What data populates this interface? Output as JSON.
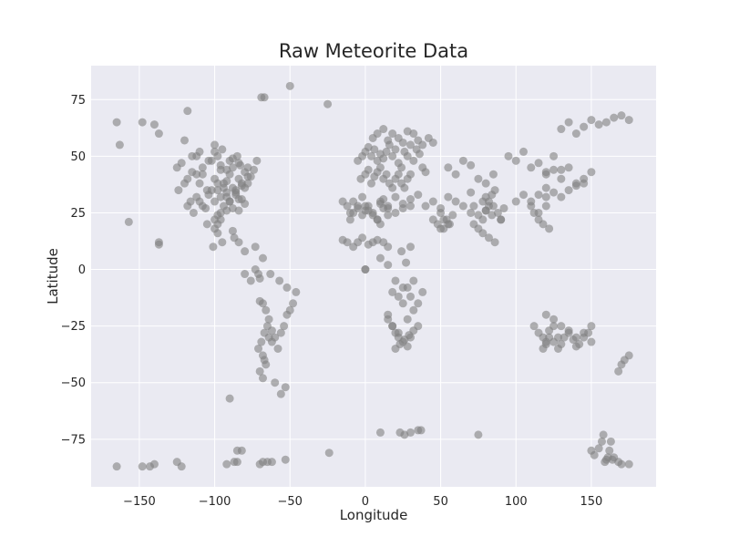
{
  "chart_data": {
    "type": "scatter",
    "title": "Raw Meteorite Data",
    "xlabel": "Longitude",
    "ylabel": "Latitude",
    "xlim": [
      -182,
      193
    ],
    "ylim": [
      -96,
      90
    ],
    "xticks": [
      -150,
      -100,
      -50,
      0,
      50,
      100,
      150
    ],
    "yticks": [
      75,
      50,
      25,
      0,
      -25,
      -50,
      -75
    ],
    "xtick_labels": [
      "−150",
      "−100",
      "−50",
      "0",
      "50",
      "100",
      "150"
    ],
    "ytick_labels": [
      "75",
      "50",
      "25",
      "0",
      "−25",
      "−50",
      "−75"
    ],
    "grid": true,
    "style": {
      "background": "#eaeaf2",
      "grid_color": "#ffffff",
      "point_color": "#808080",
      "point_opacity": 0.6
    },
    "series": [
      {
        "x": [
          -165,
          -163,
          -148,
          -140,
          -137,
          -137,
          -120,
          -118,
          -157,
          -137,
          -125,
          -122,
          -118,
          -115,
          -112,
          -110,
          -108,
          -105,
          -102,
          -100,
          -98,
          -96,
          -94,
          -92,
          -90,
          -88,
          -86,
          -84,
          -82,
          -80,
          -78,
          -76,
          -74,
          -124,
          -120,
          -116,
          -112,
          -108,
          -104,
          -100,
          -98,
          -96,
          -94,
          -92,
          -90,
          -88,
          -86,
          -84,
          -82,
          -80,
          -78,
          -118,
          -114,
          -110,
          -106,
          -102,
          -100,
          -98,
          -96,
          -94,
          -92,
          -90,
          -88,
          -86,
          -84,
          -82,
          -80,
          -112,
          -108,
          -104,
          -100,
          -98,
          -96,
          -92,
          -88,
          -84,
          -105,
          -100,
          -98,
          -96,
          -92,
          -88,
          -101,
          -98,
          -95,
          -87,
          -84,
          -80,
          -73,
          -68,
          -115,
          -110,
          -100,
          -95,
          -90,
          -85,
          -83,
          -78,
          -72,
          -69,
          -67,
          -50,
          -25,
          -80,
          -76,
          -73,
          -71,
          -70,
          -70,
          -68,
          -66,
          -64,
          -65,
          -62,
          -60,
          -67,
          -69,
          -71,
          -68,
          -64,
          -62,
          -58,
          -56,
          -54,
          -52,
          -50,
          -48,
          -46,
          -52,
          -57,
          -63,
          -67,
          -70,
          -68,
          -66,
          -60,
          -56,
          -53,
          -90,
          -85,
          -5,
          -2,
          0,
          2,
          4,
          6,
          8,
          10,
          12,
          14,
          16,
          18,
          20,
          22,
          24,
          26,
          28,
          30,
          32,
          34,
          36,
          38,
          40,
          -3,
          0,
          2,
          4,
          6,
          8,
          10,
          12,
          14,
          16,
          18,
          20,
          22,
          24,
          26,
          28,
          30,
          5,
          8,
          12,
          15,
          18,
          22,
          25,
          28,
          32,
          35,
          38,
          42,
          45,
          10,
          15,
          20,
          25,
          30,
          35,
          40,
          45,
          50,
          55,
          60,
          65,
          70,
          -10,
          -8,
          -5,
          -2,
          0,
          2,
          5,
          8,
          10,
          12,
          15,
          20,
          25,
          30,
          -15,
          -12,
          -10,
          -8,
          -5,
          -2,
          0,
          2,
          5,
          8,
          10,
          12,
          15,
          -15,
          -12,
          -8,
          -5,
          -2,
          2,
          5,
          8,
          12,
          15,
          0,
          0,
          10,
          15,
          20,
          25,
          30,
          35,
          38,
          32,
          28,
          22,
          18,
          15,
          15,
          18,
          20,
          22,
          25,
          28,
          30,
          32,
          35,
          20,
          23,
          26,
          29,
          18,
          22,
          25,
          28,
          32,
          24,
          27,
          30,
          45,
          48,
          50,
          52,
          55,
          58,
          50,
          52,
          54,
          56,
          55,
          60,
          65,
          70,
          75,
          80,
          85,
          70,
          72,
          75,
          78,
          80,
          82,
          85,
          88,
          90,
          92,
          72,
          75,
          78,
          82,
          86,
          90,
          84,
          80,
          78,
          80,
          82,
          86,
          84,
          95,
          100,
          105,
          110,
          115,
          120,
          125,
          130,
          100,
          105,
          110,
          115,
          120,
          112,
          115,
          118,
          120,
          122,
          120,
          125,
          130,
          135,
          140,
          145,
          150,
          110,
          115,
          120,
          125,
          130,
          135,
          140,
          145,
          130,
          135,
          140,
          145,
          150,
          155,
          160,
          165,
          170,
          175,
          112,
          115,
          118,
          120,
          122,
          125,
          128,
          118,
          120,
          122,
          125,
          128,
          130,
          132,
          135,
          138,
          140,
          142,
          145,
          148,
          150,
          120,
          125,
          130,
          135,
          140,
          145,
          150,
          168,
          170,
          172,
          175,
          -165,
          -148,
          -143,
          -140,
          -125,
          -122,
          -92,
          -87,
          -85,
          -82,
          -70,
          -68,
          -65,
          -62,
          -53,
          -24,
          10,
          23,
          26,
          30,
          35,
          37,
          75,
          150,
          152,
          155,
          157,
          158,
          159,
          160,
          161,
          162,
          163,
          164,
          165,
          168,
          170,
          175
        ],
        "y": [
          65,
          55,
          65,
          64,
          60,
          12,
          57,
          70,
          21,
          11,
          45,
          47,
          40,
          43,
          50,
          38,
          42,
          35,
          48,
          40,
          38,
          44,
          36,
          39,
          42,
          45,
          35,
          40,
          37,
          43,
          38,
          41,
          44,
          35,
          38,
          30,
          32,
          28,
          33,
          30,
          35,
          32,
          38,
          34,
          30,
          36,
          33,
          31,
          38,
          36,
          41,
          28,
          25,
          30,
          27,
          35,
          22,
          20,
          25,
          28,
          32,
          30,
          27,
          34,
          26,
          31,
          29,
          42,
          45,
          48,
          52,
          50,
          46,
          44,
          49,
          47,
          20,
          18,
          24,
          22,
          26,
          17,
          10,
          16,
          12,
          14,
          12,
          8,
          10,
          5,
          50,
          52,
          55,
          53,
          48,
          50,
          46,
          45,
          48,
          76,
          76,
          81,
          73,
          -2,
          -5,
          0,
          -2,
          -4,
          -14,
          -15,
          -18,
          -22,
          -25,
          -27,
          -30,
          -28,
          -32,
          -35,
          -38,
          -30,
          -32,
          -35,
          -28,
          -25,
          -20,
          -18,
          -15,
          -10,
          -8,
          -5,
          -2,
          -40,
          -45,
          -48,
          -42,
          -50,
          -55,
          -52,
          -57,
          -80,
          48,
          50,
          52,
          54,
          50,
          53,
          48,
          51,
          49,
          52,
          55,
          50,
          53,
          47,
          45,
          52,
          50,
          55,
          48,
          53,
          51,
          45,
          43,
          40,
          42,
          44,
          38,
          41,
          43,
          45,
          40,
          42,
          38,
          36,
          40,
          42,
          38,
          36,
          40,
          42,
          58,
          60,
          62,
          57,
          60,
          58,
          56,
          61,
          60,
          57,
          55,
          58,
          56,
          30,
          28,
          32,
          29,
          31,
          33,
          28,
          30,
          27,
          32,
          30,
          28,
          34,
          22,
          25,
          28,
          24,
          26,
          28,
          25,
          22,
          20,
          27,
          24,
          25,
          27,
          28,
          30,
          28,
          25,
          30,
          27,
          32,
          28,
          26,
          24,
          22,
          29,
          31,
          27,
          13,
          12,
          10,
          12,
          14,
          11,
          12,
          13,
          12,
          10,
          0,
          0,
          5,
          2,
          -5,
          -8,
          -12,
          -15,
          -10,
          -18,
          -22,
          -28,
          -25,
          -20,
          -22,
          -25,
          -28,
          -30,
          -32,
          -34,
          -30,
          -27,
          -25,
          -35,
          -33,
          -31,
          -29,
          -10,
          -12,
          -15,
          -8,
          -5,
          8,
          3,
          10,
          22,
          20,
          18,
          22,
          20,
          24,
          25,
          18,
          22,
          20,
          45,
          42,
          48,
          46,
          40,
          38,
          42,
          25,
          28,
          24,
          22,
          26,
          30,
          28,
          25,
          22,
          27,
          20,
          18,
          16,
          14,
          12,
          22,
          24,
          26,
          30,
          32,
          28,
          35,
          33,
          50,
          48,
          52,
          45,
          47,
          43,
          50,
          44,
          30,
          33,
          28,
          25,
          32,
          25,
          22,
          20,
          28,
          18,
          42,
          44,
          40,
          45,
          38,
          40,
          43,
          30,
          33,
          36,
          34,
          32,
          35,
          37,
          38,
          62,
          65,
          60,
          63,
          66,
          64,
          65,
          67,
          68,
          66,
          -25,
          -28,
          -30,
          -32,
          -27,
          -25,
          -30,
          -35,
          -33,
          -30,
          -32,
          -35,
          -33,
          -30,
          -28,
          -31,
          -34,
          -33,
          -30,
          -28,
          -32,
          -20,
          -22,
          -25,
          -27,
          -30,
          -28,
          -25,
          -45,
          -42,
          -40,
          -38,
          -87,
          -87,
          -87,
          -86,
          -85,
          -87,
          -86,
          -85,
          -85,
          -80,
          -86,
          -85,
          -85,
          -85,
          -84,
          -81,
          -72,
          -72,
          -73,
          -72,
          -71,
          -71,
          -73,
          -80,
          -82,
          -79,
          -76,
          -73,
          -85,
          -84,
          -83,
          -80,
          -76,
          -84,
          -83,
          -85,
          -86,
          -86
        ]
      }
    ]
  }
}
